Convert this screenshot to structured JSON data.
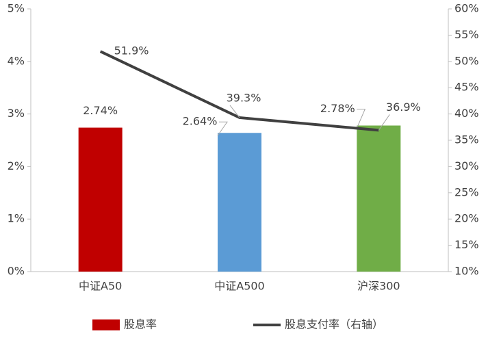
{
  "chart_data": {
    "type": "bar",
    "categories": [
      "中证A50",
      "中证A500",
      "沪深300"
    ],
    "series": [
      {
        "name": "股息率",
        "type": "bar",
        "colors": [
          "#c00000",
          "#5b9bd5",
          "#70ad47"
        ],
        "values": [
          2.74,
          2.64,
          2.78
        ],
        "value_labels": [
          "2.74%",
          "2.64%",
          "2.78%"
        ]
      },
      {
        "name": "股息支付率（右轴）",
        "type": "line",
        "axis": "y2",
        "color": "#404040",
        "values": [
          51.9,
          39.3,
          36.9
        ],
        "value_labels": [
          "51.9%",
          "39.3%",
          "36.9%"
        ]
      }
    ],
    "ylim": [
      0,
      5
    ],
    "yticks": [
      {
        "value": 0,
        "label": "0%"
      },
      {
        "value": 1,
        "label": "1%"
      },
      {
        "value": 2,
        "label": "2%"
      },
      {
        "value": 3,
        "label": "3%"
      },
      {
        "value": 4,
        "label": "4%"
      },
      {
        "value": 5,
        "label": "5%"
      }
    ],
    "y2lim": [
      10,
      60
    ],
    "y2ticks": [
      {
        "value": 10,
        "label": "10%"
      },
      {
        "value": 15,
        "label": "15%"
      },
      {
        "value": 20,
        "label": "20%"
      },
      {
        "value": 25,
        "label": "25%"
      },
      {
        "value": 30,
        "label": "30%"
      },
      {
        "value": 35,
        "label": "35%"
      },
      {
        "value": 40,
        "label": "40%"
      },
      {
        "value": 45,
        "label": "45%"
      },
      {
        "value": 50,
        "label": "50%"
      },
      {
        "value": 55,
        "label": "55%"
      },
      {
        "value": 60,
        "label": "60%"
      }
    ],
    "grid": false
  }
}
